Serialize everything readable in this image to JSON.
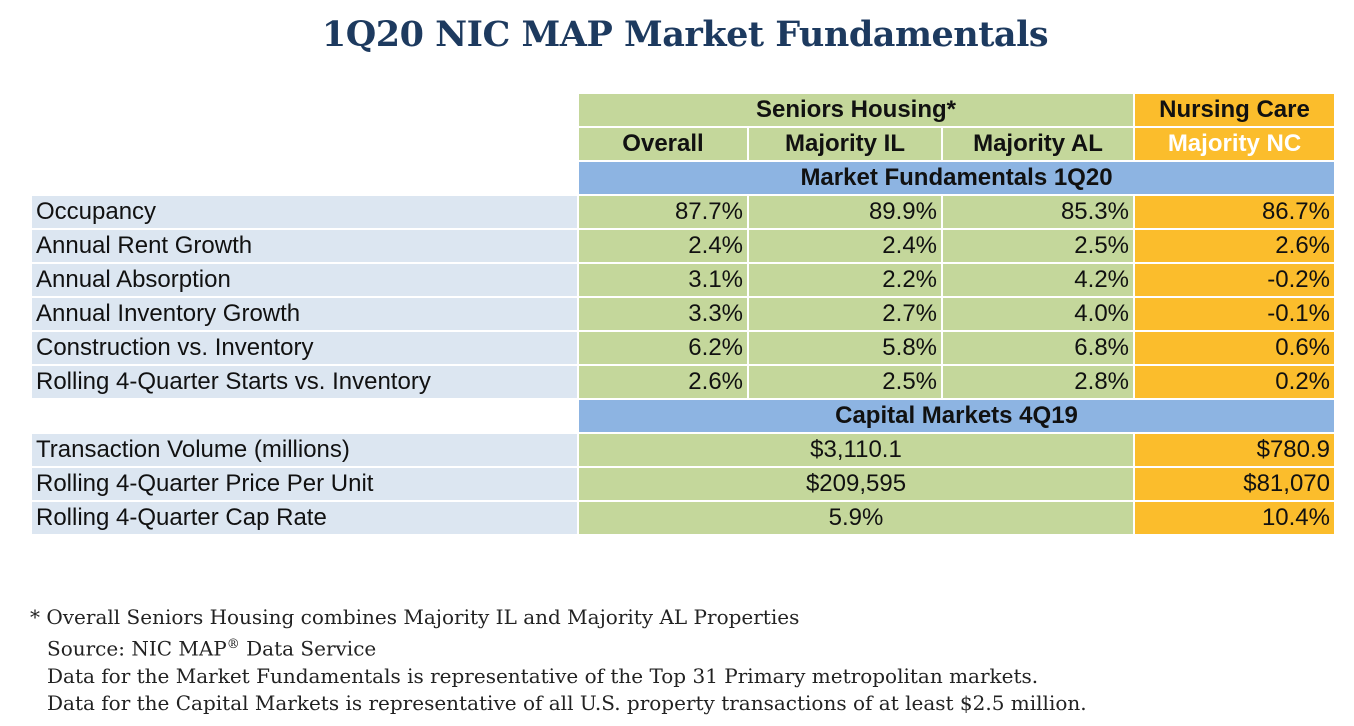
{
  "title": "1Q20 NIC MAP Market Fundamentals",
  "colors": {
    "green": "#c4d79b",
    "orange": "#fbbd2c",
    "blue": "#8db4e2",
    "label_bg": "#dce6f1",
    "title": "#1d3a5f"
  },
  "header": {
    "seniors_housing": "Seniors Housing*",
    "nursing_care": "Nursing Care",
    "columns": [
      "Overall",
      "Majority IL",
      "Majority AL",
      "Majority NC"
    ]
  },
  "market_fundamentals": {
    "heading": "Market Fundamentals 1Q20",
    "rows": [
      {
        "label": "Occupancy",
        "values": [
          "87.7%",
          "89.9%",
          "85.3%",
          "86.7%"
        ]
      },
      {
        "label": "Annual Rent Growth",
        "values": [
          "2.4%",
          "2.4%",
          "2.5%",
          "2.6%"
        ]
      },
      {
        "label": "Annual Absorption",
        "values": [
          "3.1%",
          "2.2%",
          "4.2%",
          "-0.2%"
        ]
      },
      {
        "label": "Annual Inventory Growth",
        "values": [
          "3.3%",
          "2.7%",
          "4.0%",
          "-0.1%"
        ]
      },
      {
        "label": "Construction vs. Inventory",
        "values": [
          "6.2%",
          "5.8%",
          "6.8%",
          "0.6%"
        ]
      },
      {
        "label": "Rolling 4-Quarter Starts vs. Inventory",
        "values": [
          "2.6%",
          "2.5%",
          "2.8%",
          "0.2%"
        ]
      }
    ]
  },
  "capital_markets": {
    "heading": "Capital Markets 4Q19",
    "rows": [
      {
        "label": "Transaction Volume (millions)",
        "seniors": "$3,110.1",
        "nursing": "$780.9"
      },
      {
        "label": "Rolling 4-Quarter Price Per Unit",
        "seniors": "$209,595",
        "nursing": "$81,070"
      },
      {
        "label": "Rolling 4-Quarter Cap Rate",
        "seniors": "5.9%",
        "nursing": "10.4%"
      }
    ]
  },
  "notes": {
    "asterisk": "*",
    "line1": "Overall Seniors Housing combines Majority IL and Majority AL Properties",
    "source_prefix": "Source: NIC MAP",
    "registered": "®",
    "source_suffix": " Data Service",
    "line3": "Data for the Market Fundamentals is representative of the Top 31 Primary metropolitan markets.",
    "line4": "Data for the Capital Markets is representative of all U.S. property transactions of at least $2.5 million."
  }
}
